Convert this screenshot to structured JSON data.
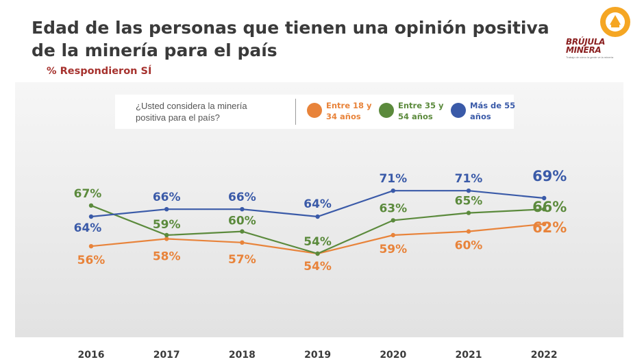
{
  "title": {
    "line1": "Edad de las personas que tienen una opinión positiva",
    "line2": "de la minería para el país"
  },
  "subtitle": "% Respondieron SÍ",
  "logo": {
    "line1": "BRÚJULA",
    "line2": "MINERA",
    "tagline": "Trabajo de cómo la gente ve la minería"
  },
  "legend": {
    "question_line1": "¿Usted considera la minería",
    "question_line2": "positiva para el país?",
    "items": [
      {
        "line1": "Entre 18 y",
        "line2": "34 años",
        "color": "#e8833a"
      },
      {
        "line1": "Entre 35 y",
        "line2": "54 años",
        "color": "#5b8a3c"
      },
      {
        "line1": "Más de 55",
        "line2": "años",
        "color": "#3a5aa8"
      }
    ]
  },
  "chart_data": {
    "type": "line",
    "x": [
      "2016",
      "2017",
      "2018",
      "2019",
      "2020",
      "2021",
      "2022"
    ],
    "series": [
      {
        "name": "Entre 18 y 34 años",
        "color": "#e8833a",
        "values": [
          56,
          58,
          57,
          54,
          59,
          60,
          62
        ]
      },
      {
        "name": "Entre 35 y 54 años",
        "color": "#5b8a3c",
        "values": [
          67,
          59,
          60,
          54,
          63,
          65,
          66
        ]
      },
      {
        "name": "Más de 55 años",
        "color": "#3a5aa8",
        "values": [
          64,
          66,
          66,
          64,
          71,
          71,
          69
        ]
      }
    ],
    "ylabel": "",
    "xlabel": "",
    "unit": "%",
    "grid": false,
    "legend_position": "top"
  }
}
